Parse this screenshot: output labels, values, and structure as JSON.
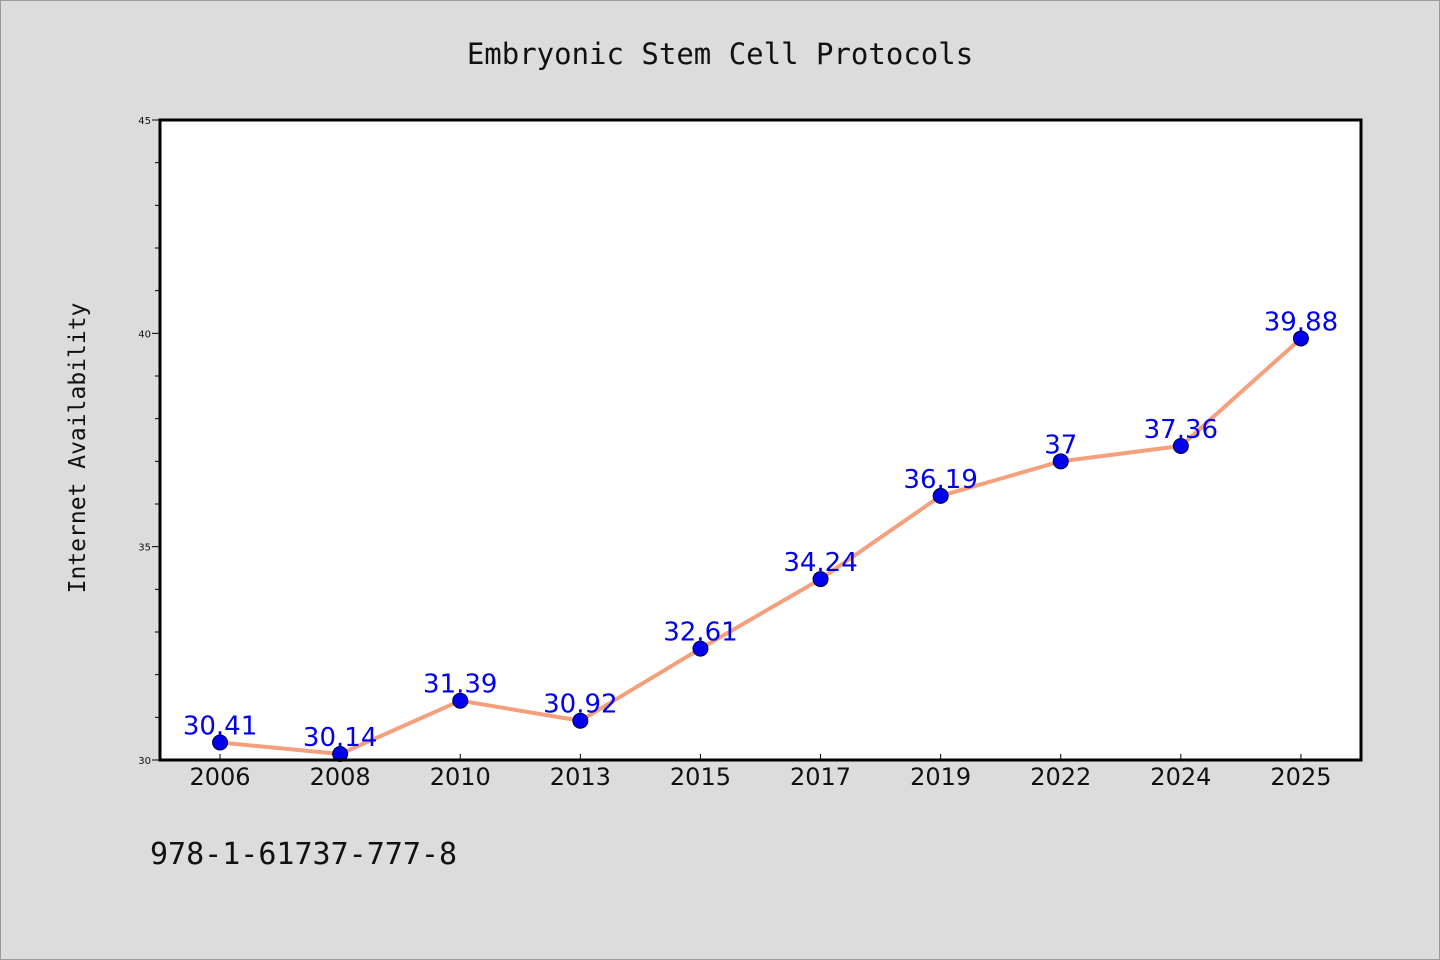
{
  "chart_data": {
    "type": "line",
    "title": "Embryonic Stem Cell Protocols",
    "xlabel": "",
    "ylabel": "Internet Availability",
    "categories": [
      "2006",
      "2008",
      "2010",
      "2013",
      "2015",
      "2017",
      "2019",
      "2022",
      "2024",
      "2025"
    ],
    "series": [
      {
        "values": [
          30.41,
          30.14,
          31.39,
          30.92,
          32.61,
          34.24,
          36.19,
          37,
          37.36,
          39.88
        ],
        "labels": [
          "30.41",
          "30.14",
          "31.39",
          "30.92",
          "32.61",
          "34.24",
          "36.19",
          "37",
          "37.36",
          "39.88"
        ]
      }
    ],
    "ylim": [
      30,
      45
    ],
    "yticks": [
      "30",
      "35",
      "40",
      "45"
    ],
    "y_minor_step": 1,
    "grid": false,
    "colors": {
      "line": "#f4a07c",
      "marker": "#0000ee",
      "labels": "#0000ee",
      "plot_background": "#ffffff",
      "page_background": "#dcdcdc"
    }
  },
  "footer": {
    "isbn": "978-1-61737-777-8"
  }
}
